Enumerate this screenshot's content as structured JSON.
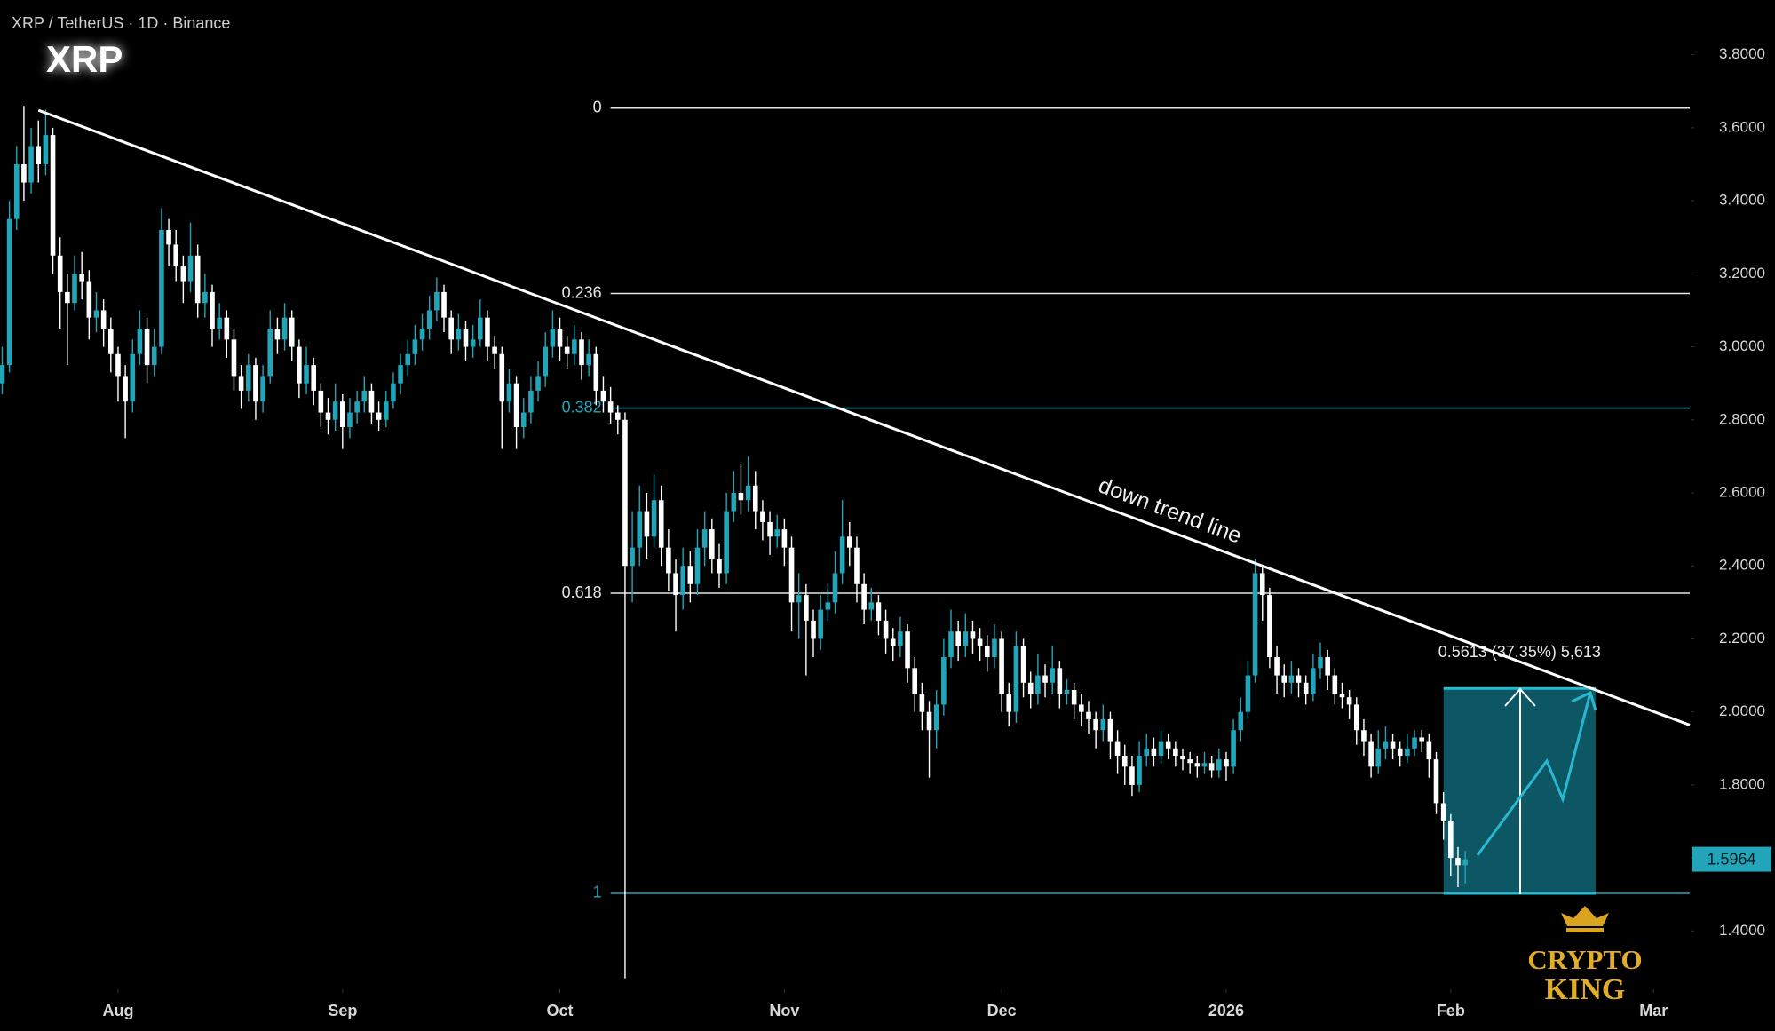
{
  "chart_data": {
    "type": "candlestick",
    "title": "XRP / TetherUS · 1D · Binance",
    "symbol": "XRP",
    "up_color": "#22a5b8",
    "down_color": "#ffffff",
    "xlim": [
      -0.3,
      233
    ],
    "ylim": [
      1.25,
      3.95
    ],
    "xticks": [
      {
        "value": 16,
        "label": "Aug"
      },
      {
        "value": 47,
        "label": "Sep"
      },
      {
        "value": 77,
        "label": "Oct"
      },
      {
        "value": 108,
        "label": "Nov"
      },
      {
        "value": 138,
        "label": "Dec"
      },
      {
        "value": 169,
        "label": "2026"
      },
      {
        "value": 200,
        "label": "Feb"
      },
      {
        "value": 228,
        "label": "Mar"
      }
    ],
    "yticks": [
      {
        "value": 1.4,
        "label": "1.4000"
      },
      {
        "value": 1.6,
        "label": "1.6000"
      },
      {
        "value": 1.8,
        "label": "1.8000"
      },
      {
        "value": 2.0,
        "label": "2.0000"
      },
      {
        "value": 2.2,
        "label": "2.2000"
      },
      {
        "value": 2.4,
        "label": "2.4000"
      },
      {
        "value": 2.6,
        "label": "2.6000"
      },
      {
        "value": 2.8,
        "label": "2.8000"
      },
      {
        "value": 3.0,
        "label": "3.0000"
      },
      {
        "value": 3.2,
        "label": "3.2000"
      },
      {
        "value": 3.4,
        "label": "3.4000"
      },
      {
        "value": 3.6,
        "label": "3.6000"
      },
      {
        "value": 3.8,
        "label": "3.8000"
      }
    ],
    "candles": [
      [
        2.9,
        3.0,
        2.87,
        2.95
      ],
      [
        2.95,
        3.4,
        2.93,
        3.35
      ],
      [
        3.35,
        3.55,
        3.32,
        3.5
      ],
      [
        3.5,
        3.66,
        3.4,
        3.45
      ],
      [
        3.45,
        3.6,
        3.42,
        3.55
      ],
      [
        3.55,
        3.62,
        3.45,
        3.5
      ],
      [
        3.5,
        3.65,
        3.47,
        3.58
      ],
      [
        3.58,
        3.6,
        3.2,
        3.25
      ],
      [
        3.25,
        3.3,
        3.05,
        3.15
      ],
      [
        3.15,
        3.2,
        2.95,
        3.12
      ],
      [
        3.12,
        3.25,
        3.1,
        3.2
      ],
      [
        3.2,
        3.26,
        3.13,
        3.18
      ],
      [
        3.18,
        3.21,
        3.02,
        3.08
      ],
      [
        3.08,
        3.15,
        3.04,
        3.1
      ],
      [
        3.1,
        3.13,
        3.0,
        3.05
      ],
      [
        3.05,
        3.08,
        2.93,
        2.98
      ],
      [
        2.98,
        3.0,
        2.85,
        2.92
      ],
      [
        2.92,
        2.95,
        2.75,
        2.85
      ],
      [
        2.85,
        3.02,
        2.82,
        2.98
      ],
      [
        2.98,
        3.1,
        2.95,
        3.05
      ],
      [
        3.05,
        3.08,
        2.9,
        2.95
      ],
      [
        2.95,
        3.05,
        2.92,
        3.0
      ],
      [
        3.0,
        3.38,
        2.98,
        3.32
      ],
      [
        3.32,
        3.35,
        3.22,
        3.28
      ],
      [
        3.28,
        3.32,
        3.18,
        3.22
      ],
      [
        3.22,
        3.25,
        3.12,
        3.18
      ],
      [
        3.18,
        3.34,
        3.15,
        3.25
      ],
      [
        3.25,
        3.28,
        3.08,
        3.12
      ],
      [
        3.12,
        3.2,
        3.08,
        3.15
      ],
      [
        3.15,
        3.17,
        3.0,
        3.05
      ],
      [
        3.05,
        3.12,
        3.02,
        3.08
      ],
      [
        3.08,
        3.1,
        2.97,
        3.02
      ],
      [
        3.02,
        3.05,
        2.88,
        2.92
      ],
      [
        2.92,
        2.95,
        2.83,
        2.88
      ],
      [
        2.88,
        2.98,
        2.85,
        2.95
      ],
      [
        2.95,
        2.97,
        2.8,
        2.85
      ],
      [
        2.85,
        2.95,
        2.82,
        2.92
      ],
      [
        2.92,
        3.1,
        2.9,
        3.05
      ],
      [
        3.05,
        3.08,
        2.98,
        3.02
      ],
      [
        3.02,
        3.12,
        2.99,
        3.08
      ],
      [
        3.08,
        3.1,
        2.96,
        3.0
      ],
      [
        3.0,
        3.02,
        2.86,
        2.9
      ],
      [
        2.9,
        3.0,
        2.87,
        2.95
      ],
      [
        2.95,
        2.97,
        2.84,
        2.88
      ],
      [
        2.88,
        2.9,
        2.78,
        2.82
      ],
      [
        2.82,
        2.86,
        2.76,
        2.8
      ],
      [
        2.8,
        2.9,
        2.77,
        2.85
      ],
      [
        2.85,
        2.87,
        2.72,
        2.78
      ],
      [
        2.78,
        2.86,
        2.75,
        2.82
      ],
      [
        2.82,
        2.88,
        2.79,
        2.85
      ],
      [
        2.85,
        2.92,
        2.82,
        2.88
      ],
      [
        2.88,
        2.9,
        2.79,
        2.82
      ],
      [
        2.82,
        2.85,
        2.77,
        2.8
      ],
      [
        2.8,
        2.88,
        2.78,
        2.85
      ],
      [
        2.85,
        2.93,
        2.83,
        2.9
      ],
      [
        2.9,
        2.98,
        2.87,
        2.95
      ],
      [
        2.95,
        3.02,
        2.92,
        2.98
      ],
      [
        2.98,
        3.06,
        2.95,
        3.02
      ],
      [
        3.02,
        3.09,
        2.99,
        3.05
      ],
      [
        3.05,
        3.14,
        3.02,
        3.1
      ],
      [
        3.1,
        3.19,
        3.07,
        3.15
      ],
      [
        3.15,
        3.17,
        3.04,
        3.08
      ],
      [
        3.08,
        3.1,
        2.98,
        3.02
      ],
      [
        3.02,
        3.09,
        2.99,
        3.05
      ],
      [
        3.05,
        3.07,
        2.96,
        3.0
      ],
      [
        3.0,
        3.06,
        2.97,
        3.02
      ],
      [
        3.02,
        3.13,
        3.0,
        3.08
      ],
      [
        3.08,
        3.1,
        2.96,
        3.0
      ],
      [
        3.0,
        3.03,
        2.94,
        2.98
      ],
      [
        2.98,
        3.0,
        2.72,
        2.85
      ],
      [
        2.85,
        2.94,
        2.82,
        2.9
      ],
      [
        2.9,
        2.92,
        2.72,
        2.78
      ],
      [
        2.78,
        2.86,
        2.75,
        2.82
      ],
      [
        2.82,
        2.92,
        2.79,
        2.88
      ],
      [
        2.88,
        2.96,
        2.85,
        2.92
      ],
      [
        2.92,
        3.04,
        2.89,
        3.0
      ],
      [
        3.0,
        3.1,
        2.97,
        3.05
      ],
      [
        3.05,
        3.08,
        2.96,
        3.0
      ],
      [
        3.0,
        3.03,
        2.94,
        2.98
      ],
      [
        2.98,
        3.06,
        2.95,
        3.02
      ],
      [
        3.02,
        3.04,
        2.91,
        2.95
      ],
      [
        2.95,
        3.02,
        2.92,
        2.98
      ],
      [
        2.98,
        3.0,
        2.84,
        2.88
      ],
      [
        2.88,
        2.92,
        2.82,
        2.85
      ],
      [
        2.85,
        2.89,
        2.79,
        2.82
      ],
      [
        2.82,
        2.84,
        2.76,
        2.8
      ],
      [
        2.8,
        2.82,
        1.27,
        2.4
      ],
      [
        2.4,
        2.55,
        2.3,
        2.45
      ],
      [
        2.45,
        2.62,
        2.4,
        2.55
      ],
      [
        2.55,
        2.6,
        2.42,
        2.48
      ],
      [
        2.48,
        2.65,
        2.45,
        2.58
      ],
      [
        2.58,
        2.62,
        2.4,
        2.45
      ],
      [
        2.45,
        2.5,
        2.33,
        2.38
      ],
      [
        2.38,
        2.42,
        2.22,
        2.32
      ],
      [
        2.32,
        2.45,
        2.28,
        2.4
      ],
      [
        2.4,
        2.44,
        2.3,
        2.35
      ],
      [
        2.35,
        2.5,
        2.32,
        2.45
      ],
      [
        2.45,
        2.55,
        2.4,
        2.5
      ],
      [
        2.5,
        2.53,
        2.38,
        2.42
      ],
      [
        2.42,
        2.46,
        2.34,
        2.38
      ],
      [
        2.38,
        2.6,
        2.35,
        2.55
      ],
      [
        2.55,
        2.66,
        2.52,
        2.6
      ],
      [
        2.6,
        2.68,
        2.54,
        2.58
      ],
      [
        2.58,
        2.7,
        2.55,
        2.62
      ],
      [
        2.62,
        2.66,
        2.5,
        2.55
      ],
      [
        2.55,
        2.58,
        2.47,
        2.52
      ],
      [
        2.52,
        2.55,
        2.43,
        2.48
      ],
      [
        2.48,
        2.54,
        2.45,
        2.5
      ],
      [
        2.5,
        2.53,
        2.4,
        2.45
      ],
      [
        2.45,
        2.48,
        2.22,
        2.3
      ],
      [
        2.3,
        2.38,
        2.2,
        2.32
      ],
      [
        2.32,
        2.35,
        2.1,
        2.25
      ],
      [
        2.25,
        2.28,
        2.15,
        2.2
      ],
      [
        2.2,
        2.32,
        2.17,
        2.28
      ],
      [
        2.28,
        2.35,
        2.25,
        2.3
      ],
      [
        2.3,
        2.44,
        2.27,
        2.38
      ],
      [
        2.38,
        2.58,
        2.35,
        2.48
      ],
      [
        2.48,
        2.52,
        2.4,
        2.45
      ],
      [
        2.45,
        2.48,
        2.3,
        2.35
      ],
      [
        2.35,
        2.38,
        2.24,
        2.28
      ],
      [
        2.28,
        2.34,
        2.25,
        2.3
      ],
      [
        2.3,
        2.32,
        2.21,
        2.25
      ],
      [
        2.25,
        2.28,
        2.16,
        2.2
      ],
      [
        2.2,
        2.23,
        2.14,
        2.18
      ],
      [
        2.18,
        2.26,
        2.15,
        2.22
      ],
      [
        2.22,
        2.24,
        2.08,
        2.12
      ],
      [
        2.12,
        2.15,
        2.0,
        2.05
      ],
      [
        2.05,
        2.08,
        1.95,
        2.0
      ],
      [
        2.0,
        2.03,
        1.82,
        1.95
      ],
      [
        1.95,
        2.06,
        1.9,
        2.02
      ],
      [
        2.02,
        2.2,
        1.99,
        2.15
      ],
      [
        2.15,
        2.28,
        2.12,
        2.22
      ],
      [
        2.22,
        2.25,
        2.14,
        2.18
      ],
      [
        2.18,
        2.27,
        2.15,
        2.22
      ],
      [
        2.22,
        2.25,
        2.16,
        2.2
      ],
      [
        2.2,
        2.23,
        2.14,
        2.18
      ],
      [
        2.18,
        2.21,
        2.11,
        2.15
      ],
      [
        2.15,
        2.24,
        2.12,
        2.2
      ],
      [
        2.2,
        2.22,
        2.0,
        2.05
      ],
      [
        2.05,
        2.08,
        1.96,
        2.0
      ],
      [
        2.0,
        2.22,
        1.97,
        2.18
      ],
      [
        2.18,
        2.2,
        2.04,
        2.08
      ],
      [
        2.08,
        2.11,
        2.01,
        2.05
      ],
      [
        2.05,
        2.16,
        2.02,
        2.1
      ],
      [
        2.1,
        2.13,
        2.04,
        2.08
      ],
      [
        2.08,
        2.18,
        2.05,
        2.12
      ],
      [
        2.12,
        2.14,
        2.01,
        2.05
      ],
      [
        2.05,
        2.09,
        2.02,
        2.06
      ],
      [
        2.06,
        2.08,
        1.98,
        2.02
      ],
      [
        2.02,
        2.05,
        1.96,
        2.0
      ],
      [
        2.0,
        2.03,
        1.94,
        1.98
      ],
      [
        1.98,
        2.0,
        1.9,
        1.95
      ],
      [
        1.95,
        2.02,
        1.92,
        1.98
      ],
      [
        1.98,
        2.0,
        1.87,
        1.92
      ],
      [
        1.92,
        1.95,
        1.83,
        1.88
      ],
      [
        1.88,
        1.91,
        1.8,
        1.85
      ],
      [
        1.85,
        1.88,
        1.77,
        1.8
      ],
      [
        1.8,
        1.92,
        1.78,
        1.88
      ],
      [
        1.88,
        1.94,
        1.85,
        1.9
      ],
      [
        1.9,
        1.93,
        1.85,
        1.88
      ],
      [
        1.88,
        1.95,
        1.86,
        1.92
      ],
      [
        1.92,
        1.94,
        1.87,
        1.9
      ],
      [
        1.9,
        1.92,
        1.85,
        1.88
      ],
      [
        1.88,
        1.9,
        1.84,
        1.87
      ],
      [
        1.87,
        1.89,
        1.83,
        1.86
      ],
      [
        1.86,
        1.88,
        1.82,
        1.85
      ],
      [
        1.85,
        1.89,
        1.83,
        1.86
      ],
      [
        1.86,
        1.88,
        1.82,
        1.84
      ],
      [
        1.84,
        1.9,
        1.82,
        1.87
      ],
      [
        1.87,
        1.89,
        1.81,
        1.85
      ],
      [
        1.85,
        1.98,
        1.83,
        1.95
      ],
      [
        1.95,
        2.04,
        1.92,
        2.0
      ],
      [
        2.0,
        2.14,
        1.98,
        2.1
      ],
      [
        2.1,
        2.42,
        2.08,
        2.38
      ],
      [
        2.38,
        2.4,
        2.25,
        2.32
      ],
      [
        2.32,
        2.34,
        2.12,
        2.15
      ],
      [
        2.15,
        2.18,
        2.05,
        2.1
      ],
      [
        2.1,
        2.13,
        2.04,
        2.08
      ],
      [
        2.08,
        2.14,
        2.05,
        2.1
      ],
      [
        2.1,
        2.12,
        2.04,
        2.08
      ],
      [
        2.08,
        2.1,
        2.02,
        2.05
      ],
      [
        2.05,
        2.16,
        2.03,
        2.12
      ],
      [
        2.12,
        2.19,
        2.09,
        2.15
      ],
      [
        2.15,
        2.17,
        2.06,
        2.1
      ],
      [
        2.1,
        2.12,
        2.02,
        2.05
      ],
      [
        2.05,
        2.08,
        2.01,
        2.04
      ],
      [
        2.04,
        2.06,
        1.98,
        2.02
      ],
      [
        2.02,
        2.04,
        1.91,
        1.95
      ],
      [
        1.95,
        1.98,
        1.88,
        1.92
      ],
      [
        1.92,
        1.94,
        1.82,
        1.85
      ],
      [
        1.85,
        1.95,
        1.83,
        1.9
      ],
      [
        1.9,
        1.96,
        1.87,
        1.92
      ],
      [
        1.92,
        1.94,
        1.87,
        1.9
      ],
      [
        1.9,
        1.92,
        1.85,
        1.88
      ],
      [
        1.88,
        1.94,
        1.86,
        1.9
      ],
      [
        1.9,
        1.95,
        1.88,
        1.93
      ],
      [
        1.93,
        1.95,
        1.89,
        1.92
      ],
      [
        1.92,
        1.94,
        1.82,
        1.87
      ],
      [
        1.87,
        1.89,
        1.72,
        1.75
      ],
      [
        1.75,
        1.78,
        1.65,
        1.7
      ],
      [
        1.7,
        1.72,
        1.55,
        1.6
      ],
      [
        1.6,
        1.63,
        1.52,
        1.58
      ],
      [
        1.58,
        1.62,
        1.53,
        1.5964
      ]
    ],
    "fib": {
      "start": 84,
      "levels": [
        {
          "ratio": 0,
          "price": 3.654,
          "color": "#e6e6e6"
        },
        {
          "ratio": 0.236,
          "price": 3.146,
          "color": "#e6e6e6"
        },
        {
          "ratio": 0.382,
          "price": 2.832,
          "color": "#22a5b8"
        },
        {
          "ratio": 0.618,
          "price": 2.325,
          "color": "#e6e6e6"
        },
        {
          "ratio": 1,
          "price": 1.503,
          "color": "#22a5b8"
        }
      ]
    },
    "trend_line": {
      "label": "down trend line",
      "color": "#ffffff",
      "points": [
        [
          5,
          3.648
        ],
        [
          233,
          1.964
        ]
      ]
    },
    "measure": {
      "label": "0.5613 (37.35%) 5,613",
      "start": 199,
      "end": 220,
      "top": 2.0643,
      "bottom": 1.503,
      "color": "#0d5663",
      "edge_color": "#2ab8d0"
    },
    "logo": {
      "lines": [
        "CRYPTO",
        "KING"
      ]
    }
  }
}
